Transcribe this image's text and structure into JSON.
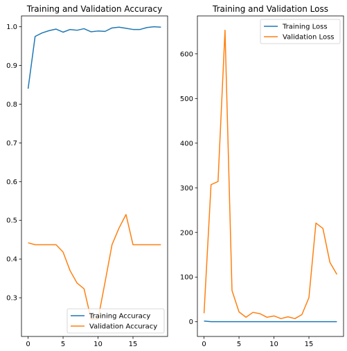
{
  "chart_data": [
    {
      "type": "line",
      "title": "Training and Validation Accuracy",
      "xlabel": "",
      "ylabel": "",
      "xlim": [
        -0.95,
        19.95
      ],
      "ylim": [
        0.2,
        1.028
      ],
      "xticks": [
        0,
        5,
        10,
        15
      ],
      "yticks": [
        0.3,
        0.4,
        0.5,
        0.6,
        0.7,
        0.8,
        0.9,
        1.0
      ],
      "ytick_labels": [
        "0.3",
        "0.4",
        "0.5",
        "0.6",
        "0.7",
        "0.8",
        "0.9",
        "1.0"
      ],
      "grid": false,
      "legend_position": "lower-right",
      "x": [
        0,
        1,
        2,
        3,
        4,
        5,
        6,
        7,
        8,
        9,
        10,
        11,
        12,
        13,
        14,
        15,
        16,
        17,
        18,
        19
      ],
      "series": [
        {
          "name": "Training Accuracy",
          "color": "#1f77b4",
          "values": [
            0.84,
            0.975,
            0.984,
            0.99,
            0.994,
            0.986,
            0.993,
            0.991,
            0.995,
            0.987,
            0.989,
            0.988,
            0.997,
            0.999,
            0.996,
            0.993,
            0.993,
            0.998,
            1.0,
            0.999
          ]
        },
        {
          "name": "Validation Accuracy",
          "color": "#ff7f0e",
          "values": [
            0.442,
            0.437,
            0.437,
            0.437,
            0.437,
            0.418,
            0.37,
            0.338,
            0.323,
            0.245,
            0.245,
            0.34,
            0.437,
            0.48,
            0.515,
            0.437,
            0.437,
            0.437,
            0.437,
            0.437
          ]
        }
      ]
    },
    {
      "type": "line",
      "title": "Training and Validation Loss",
      "xlabel": "",
      "ylabel": "",
      "xlim": [
        -0.95,
        19.95
      ],
      "ylim": [
        -33,
        685
      ],
      "xticks": [
        0,
        5,
        10,
        15
      ],
      "yticks": [
        0,
        100,
        200,
        300,
        400,
        500,
        600
      ],
      "ytick_labels": [
        "0",
        "100",
        "200",
        "300",
        "400",
        "500",
        "600"
      ],
      "grid": false,
      "legend_position": "upper-right",
      "x": [
        0,
        1,
        2,
        3,
        4,
        5,
        6,
        7,
        8,
        9,
        10,
        11,
        12,
        13,
        14,
        15,
        16,
        17,
        18,
        19
      ],
      "series": [
        {
          "name": "Training Loss",
          "color": "#1f77b4",
          "values": [
            1.5,
            0.2,
            0.1,
            0.1,
            0.1,
            0.1,
            0.1,
            0.1,
            0.1,
            0.1,
            0.1,
            0.1,
            0.1,
            0.1,
            0.1,
            0.1,
            0.1,
            0.1,
            0.1,
            0.1
          ]
        },
        {
          "name": "Validation Loss",
          "color": "#ff7f0e",
          "values": [
            19,
            307,
            314,
            653,
            70,
            22,
            10,
            21,
            18,
            10,
            13,
            7,
            11,
            7,
            16,
            54,
            221,
            209,
            133,
            106
          ]
        }
      ]
    }
  ]
}
